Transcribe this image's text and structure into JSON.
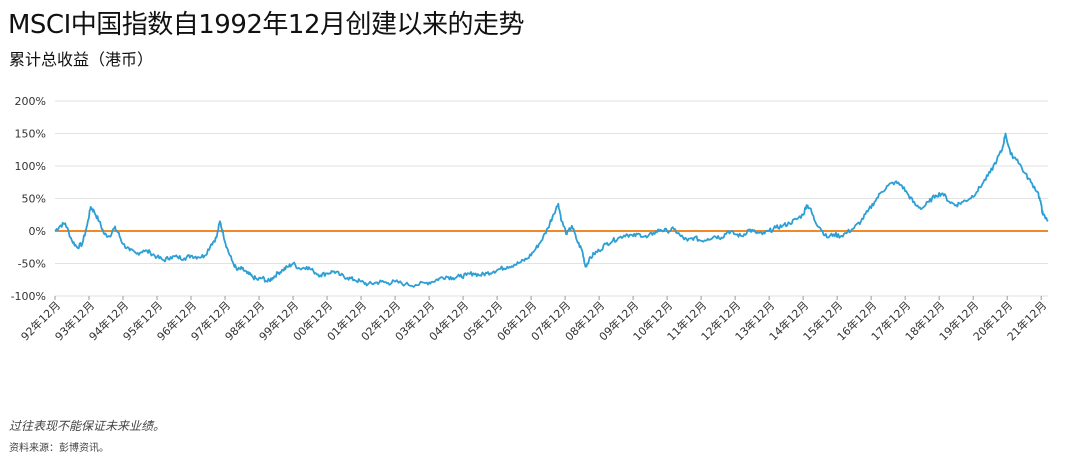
{
  "title": "MSCI中国指数自1992年12月创建以来的走势",
  "subtitle": "累计总收益（港币）",
  "footnote": "过往表现不能保证未来业绩。",
  "source": "资料来源：彭博资讯。",
  "colors": {
    "series": "#2e9fd4",
    "baseline": "#f0892a",
    "grid": "#e2e2e2"
  },
  "chart_data": {
    "type": "line",
    "ylim": [
      -100,
      200
    ],
    "yticks": [
      -100,
      -50,
      0,
      50,
      100,
      150,
      200
    ],
    "ytick_labels": [
      "-100%",
      "-50%",
      "0%",
      "50%",
      "100%",
      "150%",
      "200%"
    ],
    "xlim": [
      0,
      29.2
    ],
    "xtick_labels": [
      "92年12月",
      "93年12月",
      "94年12月",
      "95年12月",
      "96年12月",
      "97年12月",
      "98年12月",
      "99年12月",
      "00年12月",
      "01年12月",
      "02年12月",
      "03年12月",
      "04年12月",
      "05年12月",
      "06年12月",
      "07年12月",
      "08年12月",
      "09年12月",
      "10年12月",
      "11年12月",
      "12年12月",
      "13年12月",
      "14年12月",
      "15年12月",
      "16年12月",
      "17年12月",
      "18年12月",
      "19年12月",
      "20年12月",
      "21年12月"
    ],
    "grid": true,
    "baseline": 0,
    "series": [
      {
        "points": [
          [
            0,
            0
          ],
          [
            0.15,
            8
          ],
          [
            0.3,
            12
          ],
          [
            0.5,
            -15
          ],
          [
            0.65,
            -25
          ],
          [
            0.8,
            -20
          ],
          [
            0.95,
            10
          ],
          [
            1.05,
            37
          ],
          [
            1.15,
            30
          ],
          [
            1.3,
            15
          ],
          [
            1.45,
            -5
          ],
          [
            1.6,
            -8
          ],
          [
            1.75,
            5
          ],
          [
            1.85,
            -2
          ],
          [
            2.0,
            -20
          ],
          [
            2.2,
            -30
          ],
          [
            2.4,
            -35
          ],
          [
            2.6,
            -30
          ],
          [
            2.8,
            -33
          ],
          [
            3.0,
            -40
          ],
          [
            3.2,
            -45
          ],
          [
            3.4,
            -40
          ],
          [
            3.6,
            -40
          ],
          [
            3.8,
            -42
          ],
          [
            4.0,
            -38
          ],
          [
            4.2,
            -40
          ],
          [
            4.4,
            -38
          ],
          [
            4.6,
            -20
          ],
          [
            4.75,
            -10
          ],
          [
            4.85,
            15
          ],
          [
            4.95,
            -5
          ],
          [
            5.05,
            -25
          ],
          [
            5.2,
            -45
          ],
          [
            5.35,
            -60
          ],
          [
            5.5,
            -58
          ],
          [
            5.65,
            -65
          ],
          [
            5.8,
            -70
          ],
          [
            5.95,
            -75
          ],
          [
            6.1,
            -72
          ],
          [
            6.25,
            -78
          ],
          [
            6.4,
            -72
          ],
          [
            6.55,
            -65
          ],
          [
            6.7,
            -60
          ],
          [
            6.85,
            -55
          ],
          [
            7.0,
            -50
          ],
          [
            7.2,
            -58
          ],
          [
            7.4,
            -55
          ],
          [
            7.6,
            -62
          ],
          [
            7.8,
            -68
          ],
          [
            8.0,
            -65
          ],
          [
            8.2,
            -62
          ],
          [
            8.4,
            -68
          ],
          [
            8.6,
            -72
          ],
          [
            8.8,
            -75
          ],
          [
            9.0,
            -78
          ],
          [
            9.2,
            -82
          ],
          [
            9.4,
            -80
          ],
          [
            9.6,
            -78
          ],
          [
            9.8,
            -80
          ],
          [
            10.0,
            -78
          ],
          [
            10.3,
            -82
          ],
          [
            10.6,
            -83
          ],
          [
            10.9,
            -80
          ],
          [
            11.1,
            -78
          ],
          [
            11.3,
            -73
          ],
          [
            11.5,
            -70
          ],
          [
            11.7,
            -72
          ],
          [
            11.9,
            -70
          ],
          [
            12.1,
            -68
          ],
          [
            12.3,
            -65
          ],
          [
            12.5,
            -68
          ],
          [
            12.7,
            -65
          ],
          [
            12.9,
            -62
          ],
          [
            13.1,
            -58
          ],
          [
            13.3,
            -55
          ],
          [
            13.5,
            -52
          ],
          [
            13.7,
            -48
          ],
          [
            13.9,
            -42
          ],
          [
            14.1,
            -30
          ],
          [
            14.3,
            -15
          ],
          [
            14.5,
            5
          ],
          [
            14.65,
            25
          ],
          [
            14.8,
            42
          ],
          [
            14.9,
            15
          ],
          [
            15.05,
            -5
          ],
          [
            15.2,
            8
          ],
          [
            15.35,
            -15
          ],
          [
            15.5,
            -30
          ],
          [
            15.6,
            -55
          ],
          [
            15.7,
            -45
          ],
          [
            15.85,
            -35
          ],
          [
            16.0,
            -30
          ],
          [
            16.2,
            -20
          ],
          [
            16.4,
            -15
          ],
          [
            16.6,
            -10
          ],
          [
            16.8,
            -5
          ],
          [
            17.0,
            -8
          ],
          [
            17.2,
            -5
          ],
          [
            17.4,
            -10
          ],
          [
            17.6,
            -3
          ],
          [
            17.8,
            2
          ],
          [
            18.0,
            0
          ],
          [
            18.2,
            3
          ],
          [
            18.4,
            -8
          ],
          [
            18.6,
            -15
          ],
          [
            18.8,
            -10
          ],
          [
            19.0,
            -15
          ],
          [
            19.2,
            -12
          ],
          [
            19.4,
            -8
          ],
          [
            19.6,
            -10
          ],
          [
            19.8,
            0
          ],
          [
            20.0,
            -5
          ],
          [
            20.2,
            -8
          ],
          [
            20.4,
            2
          ],
          [
            20.6,
            -2
          ],
          [
            20.8,
            -5
          ],
          [
            21.0,
            0
          ],
          [
            21.2,
            5
          ],
          [
            21.4,
            8
          ],
          [
            21.6,
            12
          ],
          [
            21.8,
            18
          ],
          [
            22.0,
            25
          ],
          [
            22.1,
            40
          ],
          [
            22.2,
            35
          ],
          [
            22.35,
            15
          ],
          [
            22.5,
            5
          ],
          [
            22.7,
            -10
          ],
          [
            22.9,
            -5
          ],
          [
            23.1,
            -8
          ],
          [
            23.3,
            -2
          ],
          [
            23.5,
            5
          ],
          [
            23.7,
            15
          ],
          [
            23.9,
            30
          ],
          [
            24.1,
            45
          ],
          [
            24.3,
            60
          ],
          [
            24.5,
            70
          ],
          [
            24.7,
            75
          ],
          [
            24.9,
            70
          ],
          [
            25.1,
            55
          ],
          [
            25.3,
            40
          ],
          [
            25.5,
            35
          ],
          [
            25.7,
            45
          ],
          [
            25.9,
            55
          ],
          [
            26.1,
            58
          ],
          [
            26.3,
            45
          ],
          [
            26.5,
            40
          ],
          [
            26.7,
            45
          ],
          [
            26.9,
            50
          ],
          [
            27.1,
            60
          ],
          [
            27.3,
            75
          ],
          [
            27.5,
            90
          ],
          [
            27.7,
            110
          ],
          [
            27.85,
            125
          ],
          [
            27.95,
            150
          ],
          [
            28.1,
            118
          ],
          [
            28.3,
            110
          ],
          [
            28.5,
            90
          ],
          [
            28.7,
            75
          ],
          [
            28.9,
            60
          ],
          [
            29.0,
            40
          ],
          [
            29.05,
            25
          ],
          [
            29.2,
            15
          ]
        ]
      }
    ]
  }
}
